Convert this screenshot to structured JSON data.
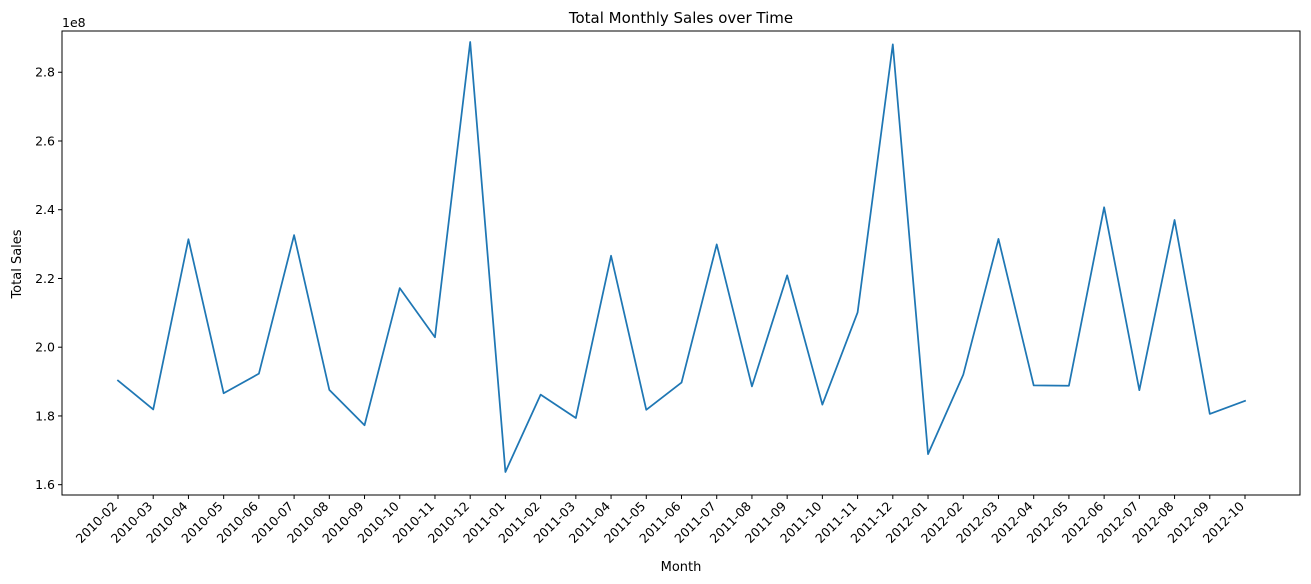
{
  "chart_data": {
    "type": "line",
    "title": "Total Monthly Sales over Time",
    "xlabel": "Month",
    "ylabel": "Total Sales",
    "y_offset_text": "1e8",
    "categories": [
      "2010-02",
      "2010-03",
      "2010-04",
      "2010-05",
      "2010-06",
      "2010-07",
      "2010-08",
      "2010-09",
      "2010-10",
      "2010-11",
      "2010-12",
      "2011-01",
      "2011-02",
      "2011-03",
      "2011-04",
      "2011-05",
      "2011-06",
      "2011-07",
      "2011-08",
      "2011-09",
      "2011-10",
      "2011-11",
      "2011-12",
      "2012-01",
      "2012-02",
      "2012-03",
      "2012-04",
      "2012-05",
      "2012-06",
      "2012-07",
      "2012-08",
      "2012-09",
      "2012-10"
    ],
    "series": [
      {
        "values": [
          190.3,
          181.9,
          231.4,
          186.6,
          192.3,
          232.6,
          187.6,
          177.3,
          217.2,
          202.9,
          288.8,
          163.7,
          186.2,
          179.4,
          226.6,
          181.8,
          189.7,
          229.9,
          188.6,
          220.9,
          183.3,
          210.1,
          288.1,
          168.9,
          192.0,
          231.5,
          188.9,
          188.8,
          240.7,
          187.5,
          237.0,
          180.6,
          184.4
        ],
        "color": "#1f77b4"
      }
    ],
    "value_scale": 1000000,
    "ylim": [
      1.57,
      2.92
    ],
    "yticks": [
      1.6,
      1.8,
      2.0,
      2.2,
      2.4,
      2.6,
      2.8
    ],
    "ytick_labels": [
      "1.6",
      "1.8",
      "2.0",
      "2.2",
      "2.4",
      "2.6",
      "2.8"
    ],
    "grid": false,
    "legend": "none"
  }
}
